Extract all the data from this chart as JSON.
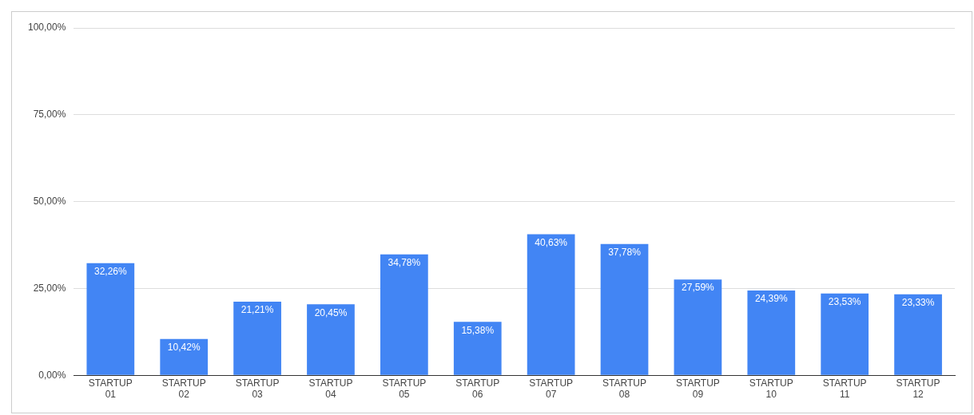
{
  "chart_data": {
    "type": "bar",
    "categories": [
      "STARTUP 01",
      "STARTUP 02",
      "STARTUP 03",
      "STARTUP 04",
      "STARTUP 05",
      "STARTUP 06",
      "STARTUP 07",
      "STARTUP 08",
      "STARTUP 09",
      "STARTUP 10",
      "STARTUP 11",
      "STARTUP 12"
    ],
    "values": [
      32.26,
      10.42,
      21.21,
      20.45,
      34.78,
      15.38,
      40.63,
      37.78,
      27.59,
      24.39,
      23.53,
      23.33
    ],
    "value_labels": [
      "32,26%",
      "10,42%",
      "21,21%",
      "20,45%",
      "34,78%",
      "15,38%",
      "40,63%",
      "37,78%",
      "27,59%",
      "24,39%",
      "23,53%",
      "23,33%"
    ],
    "color": "#4285f4",
    "ylim": [
      0,
      100
    ],
    "yticks": [
      {
        "value": 0,
        "label": "0,00%"
      },
      {
        "value": 25,
        "label": "25,00%"
      },
      {
        "value": 50,
        "label": "50,00%"
      },
      {
        "value": 75,
        "label": "75,00%"
      },
      {
        "value": 100,
        "label": "100,00%"
      }
    ],
    "grid": "y",
    "legend": false
  }
}
